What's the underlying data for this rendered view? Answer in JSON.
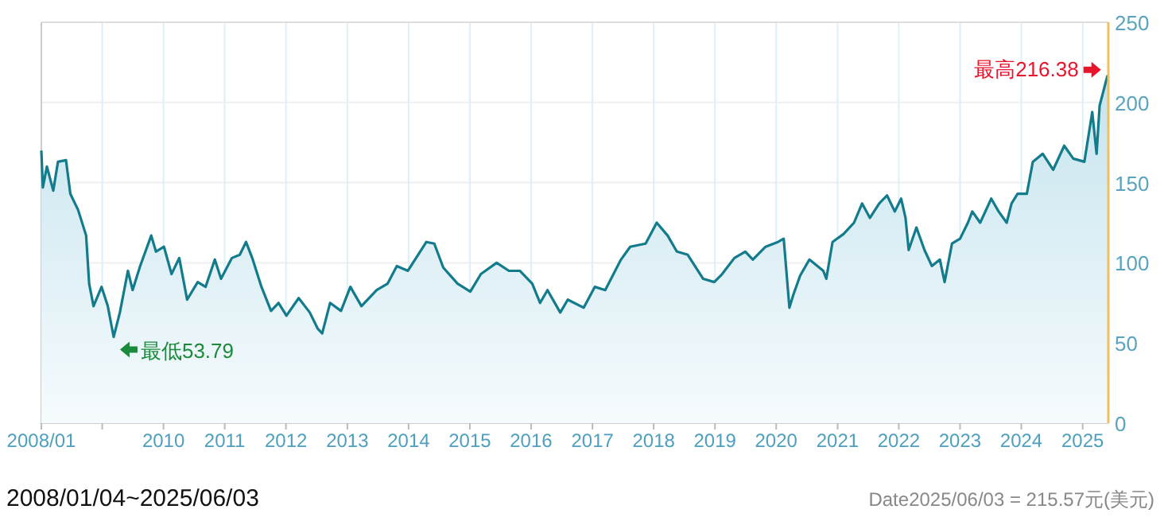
{
  "chart_data": {
    "type": "area",
    "x": [
      "2008-01-04",
      "2008-01-13",
      "2008-02-06",
      "2008-03-15",
      "2008-04-12",
      "2008-05-30",
      "2008-06-25",
      "2008-08-10",
      "2008-09-27",
      "2008-10-15",
      "2008-11-10",
      "2008-12-28",
      "2009-02-03",
      "2009-03-10",
      "2009-04-16",
      "2009-06-03",
      "2009-07-01",
      "2009-08-15",
      "2009-10-20",
      "2009-11-17",
      "2010-01-04",
      "2010-02-18",
      "2010-04-05",
      "2010-05-22",
      "2010-07-24",
      "2010-09-09",
      "2010-11-03",
      "2010-12-10",
      "2011-02-13",
      "2011-04-01",
      "2011-05-08",
      "2011-06-14",
      "2011-08-08",
      "2011-10-04",
      "2011-11-18",
      "2012-01-04",
      "2012-03-17",
      "2012-05-22",
      "2012-07-08",
      "2012-08-04",
      "2012-09-20",
      "2012-11-24",
      "2013-01-19",
      "2013-03-26",
      "2013-06-25",
      "2013-08-29",
      "2013-10-23",
      "2013-12-28",
      "2014-04-17",
      "2014-06-03",
      "2014-07-27",
      "2014-10-20",
      "2015-01-04",
      "2015-03-08",
      "2015-06-10",
      "2015-08-22",
      "2015-10-26",
      "2016-01-08",
      "2016-02-24",
      "2016-04-08",
      "2016-06-23",
      "2016-08-07",
      "2016-11-10",
      "2017-01-15",
      "2017-03-18",
      "2017-06-20",
      "2017-08-14",
      "2017-11-14",
      "2018-01-19",
      "2018-03-25",
      "2018-05-19",
      "2018-07-23",
      "2018-10-23",
      "2018-12-28",
      "2019-02-13",
      "2019-04-27",
      "2019-07-01",
      "2019-08-15",
      "2019-10-30",
      "2020-01-12",
      "2020-02-15",
      "2020-03-20",
      "2020-04-12",
      "2020-05-23",
      "2020-07-17",
      "2020-10-08",
      "2020-10-26",
      "2020-12-02",
      "2021-02-06",
      "2021-04-09",
      "2021-05-27",
      "2021-07-13",
      "2021-09-06",
      "2021-10-23",
      "2021-12-08",
      "2022-01-15",
      "2022-02-10",
      "2022-03-01",
      "2022-04-16",
      "2022-06-03",
      "2022-07-17",
      "2022-09-03",
      "2022-10-01",
      "2022-11-14",
      "2023-01-01",
      "2023-02-17",
      "2023-03-15",
      "2023-05-01",
      "2023-07-06",
      "2023-08-19",
      "2023-10-06",
      "2023-11-04",
      "2023-12-10",
      "2024-02-03",
      "2024-03-10",
      "2024-05-08",
      "2024-07-09",
      "2024-09-13",
      "2024-11-06",
      "2025-01-11",
      "2025-02-27",
      "2025-03-25",
      "2025-04-12",
      "2025-05-28",
      "2025-06-03"
    ],
    "series": [
      {
        "color": "#127b8c",
        "values": [
          170,
          147,
          160,
          145,
          163,
          164,
          143,
          133,
          117,
          87,
          73,
          85,
          73,
          53.79,
          69,
          95,
          83,
          98,
          117,
          107,
          110,
          93,
          103,
          77,
          88,
          85,
          102,
          90,
          103,
          105,
          113,
          103,
          85,
          70,
          75,
          67,
          78,
          69,
          59,
          56,
          75,
          70,
          85,
          73,
          83,
          87,
          98,
          95,
          113,
          112,
          97,
          87,
          82,
          93,
          100,
          95,
          95,
          87,
          75,
          83,
          69,
          77,
          72,
          85,
          83,
          102,
          110,
          112,
          125,
          117,
          107,
          105,
          90,
          88,
          93,
          103,
          107,
          102,
          110,
          113,
          115,
          72,
          80,
          92,
          102,
          95,
          90,
          113,
          118,
          125,
          137,
          128,
          137,
          142,
          132,
          140,
          128,
          108,
          122,
          108,
          98,
          102,
          88,
          112,
          115,
          125,
          132,
          125,
          140,
          132,
          125,
          137,
          143,
          143,
          163,
          168,
          158,
          173,
          165,
          163,
          194,
          168,
          198,
          216.38,
          215.57
        ]
      }
    ],
    "xlim": [
      "2008-01-04",
      "2025-06-03"
    ],
    "xticks": [
      {
        "value": "2008-01-04",
        "label": "2008/01"
      },
      {
        "value": "2009-01-01",
        "label": null
      },
      {
        "value": "2010-01-01",
        "label": "2010"
      },
      {
        "value": "2011-01-01",
        "label": "2011"
      },
      {
        "value": "2012-01-01",
        "label": "2012"
      },
      {
        "value": "2013-01-01",
        "label": "2013"
      },
      {
        "value": "2014-01-01",
        "label": "2014"
      },
      {
        "value": "2015-01-01",
        "label": "2015"
      },
      {
        "value": "2016-01-01",
        "label": "2016"
      },
      {
        "value": "2017-01-01",
        "label": "2017"
      },
      {
        "value": "2018-01-01",
        "label": "2018"
      },
      {
        "value": "2019-01-01",
        "label": "2019"
      },
      {
        "value": "2020-01-01",
        "label": "2020"
      },
      {
        "value": "2021-01-01",
        "label": "2021"
      },
      {
        "value": "2022-01-01",
        "label": "2022"
      },
      {
        "value": "2023-01-01",
        "label": "2023"
      },
      {
        "value": "2024-01-01",
        "label": "2024"
      },
      {
        "value": "2025-01-01",
        "label": "2025"
      }
    ],
    "ylim": [
      0,
      250
    ],
    "yticks": [
      0,
      50,
      100,
      150,
      200,
      250
    ],
    "grid": true,
    "annotations": [
      {
        "text": "最低53.79",
        "x": "2009-03-10",
        "y": 53.79
      },
      {
        "text": "最高216.38",
        "x": "2025-05-28",
        "y": 216.38
      },
      "2008/01/04~2025/06/03",
      "Date2025/06/03 =  215.57元(美元)"
    ]
  }
}
